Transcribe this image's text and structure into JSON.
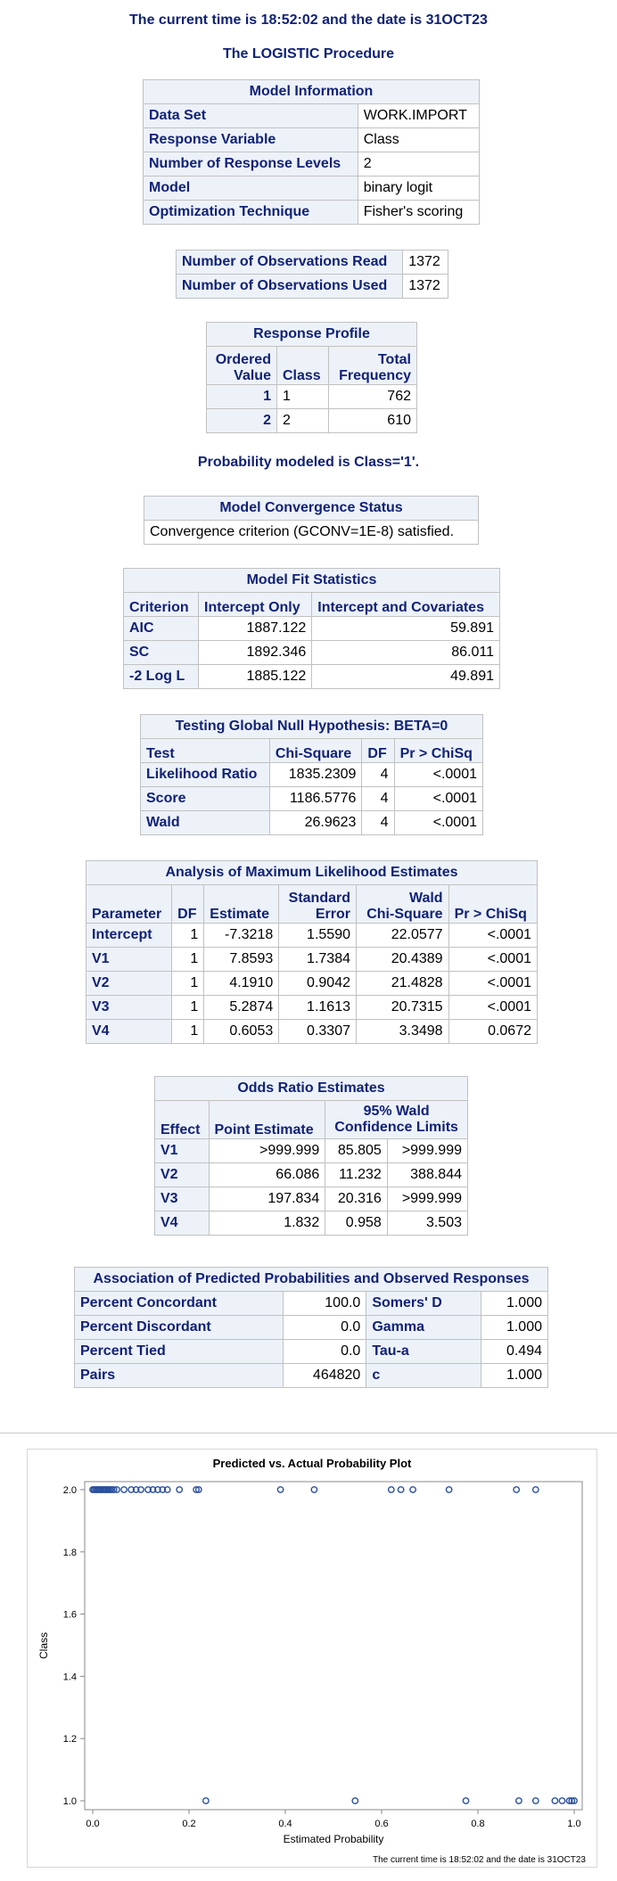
{
  "header": {
    "time_line": "The current time is 18:52:02 and the date is 31OCT23",
    "procedure": "The LOGISTIC Procedure"
  },
  "model_info": {
    "caption": "Model Information",
    "rows": [
      [
        "Data Set",
        "WORK.IMPORT"
      ],
      [
        "Response Variable",
        "Class"
      ],
      [
        "Number of Response Levels",
        "2"
      ],
      [
        "Model",
        "binary logit"
      ],
      [
        "Optimization Technique",
        "Fisher's scoring"
      ]
    ]
  },
  "observations": {
    "rows": [
      [
        "Number of Observations Read",
        "1372"
      ],
      [
        "Number of Observations Used",
        "1372"
      ]
    ]
  },
  "response_profile": {
    "caption": "Response Profile",
    "col1a": "Ordered",
    "col1b": "Value",
    "col2": "Class",
    "col3a": "Total",
    "col3b": "Frequency",
    "rows": [
      [
        "1",
        "1",
        "762"
      ],
      [
        "2",
        "2",
        "610"
      ]
    ]
  },
  "prob_modeled": "Probability modeled is Class='1'.",
  "convergence": {
    "caption": "Model Convergence Status",
    "text": "Convergence criterion (GCONV=1E-8) satisfied."
  },
  "fit_stats": {
    "caption": "Model Fit Statistics",
    "headers": [
      "Criterion",
      "Intercept Only",
      "Intercept and Covariates"
    ],
    "rows": [
      [
        "AIC",
        "1887.122",
        "59.891"
      ],
      [
        "SC",
        "1892.346",
        "86.011"
      ],
      [
        "-2 Log L",
        "1885.122",
        "49.891"
      ]
    ]
  },
  "global_null": {
    "caption": "Testing Global Null Hypothesis: BETA=0",
    "headers": [
      "Test",
      "Chi-Square",
      "DF",
      "Pr > ChiSq"
    ],
    "rows": [
      [
        "Likelihood Ratio",
        "1835.2309",
        "4",
        "<.0001"
      ],
      [
        "Score",
        "1186.5776",
        "4",
        "<.0001"
      ],
      [
        "Wald",
        "26.9623",
        "4",
        "<.0001"
      ]
    ]
  },
  "mle": {
    "caption": "Analysis of Maximum Likelihood Estimates",
    "h_param": "Parameter",
    "h_df": "DF",
    "h_est": "Estimate",
    "h_se_a": "Standard",
    "h_se_b": "Error",
    "h_wald_a": "Wald",
    "h_wald_b": "Chi-Square",
    "h_p": "Pr > ChiSq",
    "rows": [
      [
        "Intercept",
        "1",
        "-7.3218",
        "1.5590",
        "22.0577",
        "<.0001"
      ],
      [
        "V1",
        "1",
        "7.8593",
        "1.7384",
        "20.4389",
        "<.0001"
      ],
      [
        "V2",
        "1",
        "4.1910",
        "0.9042",
        "21.4828",
        "<.0001"
      ],
      [
        "V3",
        "1",
        "5.2874",
        "1.1613",
        "20.7315",
        "<.0001"
      ],
      [
        "V4",
        "1",
        "0.6053",
        "0.3307",
        "3.3498",
        "0.0672"
      ]
    ]
  },
  "odds": {
    "caption": "Odds Ratio Estimates",
    "h_effect": "Effect",
    "h_point": "Point Estimate",
    "h_ci_a": "95% Wald",
    "h_ci_b": "Confidence Limits",
    "rows": [
      [
        "V1",
        ">999.999",
        "85.805",
        ">999.999"
      ],
      [
        "V2",
        "66.086",
        "11.232",
        "388.844"
      ],
      [
        "V3",
        "197.834",
        "20.316",
        ">999.999"
      ],
      [
        "V4",
        "1.832",
        "0.958",
        "3.503"
      ]
    ]
  },
  "association": {
    "caption": "Association of Predicted Probabilities and Observed Responses",
    "rows": [
      [
        "Percent Concordant",
        "100.0",
        "Somers' D",
        "1.000"
      ],
      [
        "Percent Discordant",
        "0.0",
        "Gamma",
        "1.000"
      ],
      [
        "Percent Tied",
        "0.0",
        "Tau-a",
        "0.494"
      ],
      [
        "Pairs",
        "464820",
        "c",
        "1.000"
      ]
    ]
  },
  "footer": "The current time is  18:52:02 and the date is  31OCT23",
  "chart_data": {
    "type": "scatter",
    "title": "Predicted vs. Actual Probability Plot",
    "xlabel": "Estimated Probability",
    "ylabel": "Class",
    "xlim": [
      0.0,
      1.0
    ],
    "ylim": [
      1.0,
      2.0
    ],
    "xticks": [
      "0.0",
      "0.2",
      "0.4",
      "0.6",
      "0.8",
      "1.0"
    ],
    "yticks": [
      "1.0",
      "1.2",
      "1.4",
      "1.6",
      "1.8",
      "2.0"
    ],
    "marker": "open circle",
    "marker_color": "#2a4f9c",
    "series": [
      {
        "points": [
          [
            0.0,
            2.0
          ],
          [
            0.003,
            2.0
          ],
          [
            0.006,
            2.0
          ],
          [
            0.009,
            2.0
          ],
          [
            0.012,
            2.0
          ],
          [
            0.015,
            2.0
          ],
          [
            0.018,
            2.0
          ],
          [
            0.021,
            2.0
          ],
          [
            0.024,
            2.0
          ],
          [
            0.027,
            2.0
          ],
          [
            0.03,
            2.0
          ],
          [
            0.033,
            2.0
          ],
          [
            0.036,
            2.0
          ],
          [
            0.04,
            2.0
          ],
          [
            0.044,
            2.0
          ],
          [
            0.05,
            2.0
          ],
          [
            0.065,
            2.0
          ],
          [
            0.08,
            2.0
          ],
          [
            0.09,
            2.0
          ],
          [
            0.1,
            2.0
          ],
          [
            0.115,
            2.0
          ],
          [
            0.125,
            2.0
          ],
          [
            0.135,
            2.0
          ],
          [
            0.145,
            2.0
          ],
          [
            0.155,
            2.0
          ],
          [
            0.18,
            2.0
          ],
          [
            0.215,
            2.0
          ],
          [
            0.22,
            2.0
          ],
          [
            0.39,
            2.0
          ],
          [
            0.46,
            2.0
          ],
          [
            0.62,
            2.0
          ],
          [
            0.64,
            2.0
          ],
          [
            0.665,
            2.0
          ],
          [
            0.74,
            2.0
          ],
          [
            0.88,
            2.0
          ],
          [
            0.92,
            2.0
          ],
          [
            0.235,
            1.0
          ],
          [
            0.545,
            1.0
          ],
          [
            0.775,
            1.0
          ],
          [
            0.885,
            1.0
          ],
          [
            0.92,
            1.0
          ],
          [
            0.96,
            1.0
          ],
          [
            0.975,
            1.0
          ],
          [
            0.99,
            1.0
          ],
          [
            0.995,
            1.0
          ],
          [
            1.0,
            1.0
          ]
        ]
      }
    ]
  }
}
